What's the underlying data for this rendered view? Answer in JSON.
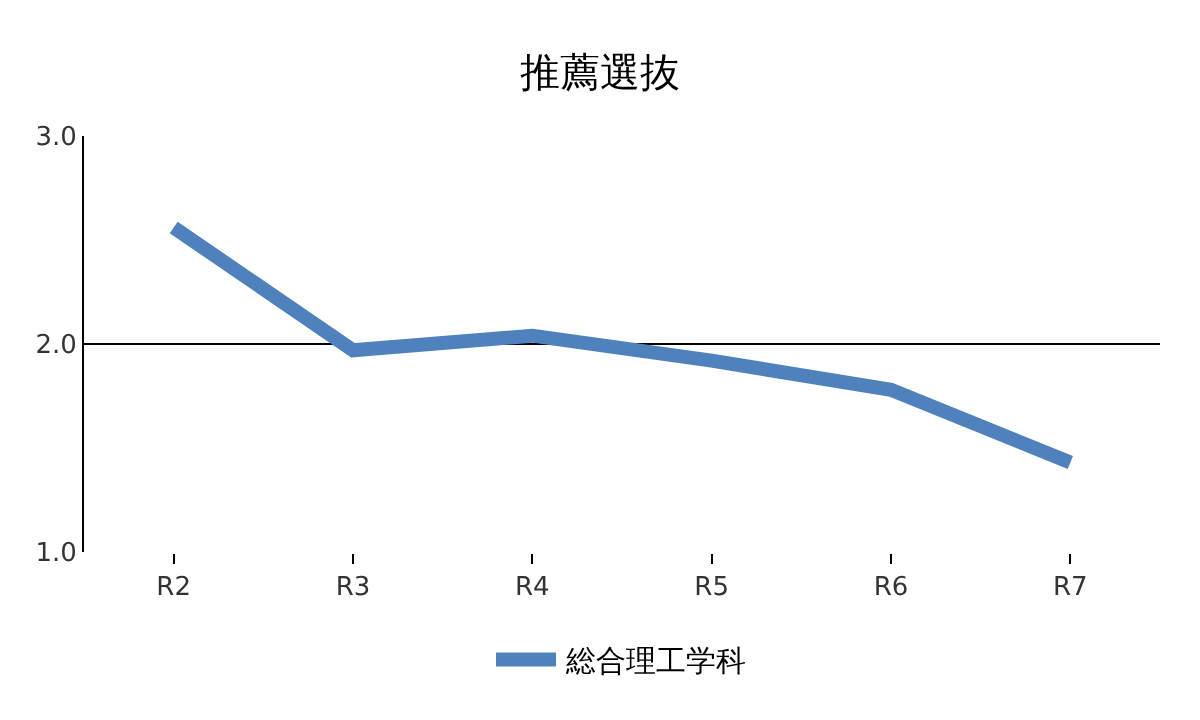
{
  "chart_data": {
    "type": "line",
    "title": "推薦選抜",
    "categories": [
      "R2",
      "R3",
      "R4",
      "R5",
      "R6",
      "R7"
    ],
    "series": [
      {
        "name": "総合理工学科",
        "color": "#4f81bd",
        "values": [
          2.56,
          1.97,
          2.04,
          1.92,
          1.78,
          1.43
        ]
      }
    ],
    "ylim": [
      1.0,
      3.0
    ],
    "yticks": [
      {
        "value": 1.0,
        "label": "1.0"
      },
      {
        "value": 2.0,
        "label": "2.0"
      },
      {
        "value": 3.0,
        "label": "3.0"
      }
    ],
    "grid": "y",
    "legend": "bottom",
    "marker": "none",
    "line_style": "solid"
  }
}
